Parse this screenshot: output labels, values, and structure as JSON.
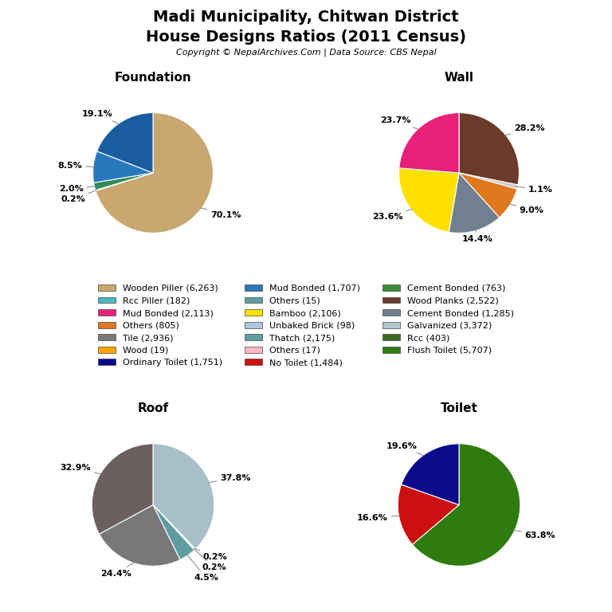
{
  "title": "Madi Municipality, Chitwan District",
  "subtitle": "House Designs Ratios (2011 Census)",
  "annotations": [
    "Copyright © NepalArchives.Com | Data Source: CBS Nepal"
  ],
  "legend": "center",
  "series": [
    {
      "name": "Wooden Piller (6,263)",
      "color": "#C8A870"
    },
    {
      "name": "Rcc Piller (182)",
      "color": "#4BB8C0"
    },
    {
      "name": "Mud Bonded (2,113)",
      "color": "#E8207A"
    },
    {
      "name": "Others (805)",
      "color": "#E07820"
    },
    {
      "name": "Tile (2,936)",
      "color": "#787878"
    },
    {
      "name": "Wood (19)",
      "color": "#FFA500"
    },
    {
      "name": "Ordinary Toilet (1,751)",
      "color": "#0A0A8B"
    },
    {
      "name": "Mud Bonded (1,707)",
      "color": "#2878BE"
    },
    {
      "name": "Others (15)",
      "color": "#5F9EA0"
    },
    {
      "name": "Bamboo (2,106)",
      "color": "#FFE000"
    },
    {
      "name": "Unbaked Brick (98)",
      "color": "#B0C4DE"
    },
    {
      "name": "Thatch (2,175)",
      "color": "#5F9EA0"
    },
    {
      "name": "Others (17)",
      "color": "#FFB6C1"
    },
    {
      "name": "No Toilet (1,484)",
      "color": "#CC1010"
    },
    {
      "name": "Cement Bonded (763)",
      "color": "#3A8B3A"
    },
    {
      "name": "Wood Planks (2,522)",
      "color": "#6B3A2A"
    },
    {
      "name": "Cement Bonded (1,285)",
      "color": "#708090"
    },
    {
      "name": "Galvanized (3,372)",
      "color": "#B0C8D0"
    },
    {
      "name": "Rcc (403)",
      "color": "#3A6B20"
    },
    {
      "name": "Flush Toilet (5,707)",
      "color": "#2E7B10"
    }
  ],
  "chart_data": [
    {
      "type": "pie",
      "title": "Foundation",
      "values": [
        70.1,
        0.2,
        2.0,
        8.5,
        19.1
      ],
      "value_labels": [
        "70.1%",
        "0.2%",
        "2.0%",
        "8.5%",
        "19.1%"
      ],
      "colors": [
        "#C8A870",
        "#4BB8C0",
        "#2E8B57",
        "#2878BE",
        "#1A5CA0"
      ],
      "data_labels": true
    },
    {
      "type": "pie",
      "title": "Wall",
      "values": [
        28.2,
        1.1,
        9.0,
        14.4,
        23.6,
        23.7
      ],
      "value_labels": [
        "28.2%",
        "1.1%",
        "9.0%",
        "14.4%",
        "23.6%",
        "23.7%"
      ],
      "colors": [
        "#6B3A2A",
        "#C8C8C0",
        "#E07820",
        "#708090",
        "#FFE000",
        "#E8207A"
      ],
      "data_labels": true
    },
    {
      "type": "pie",
      "title": "Roof",
      "values": [
        37.8,
        0.2,
        0.2,
        4.5,
        24.4,
        32.9
      ],
      "value_labels": [
        "37.8%",
        "0.2%",
        "0.2%",
        "4.5%",
        "24.4%",
        "32.9%"
      ],
      "colors": [
        "#A8BFC8",
        "#CC6633",
        "#3A6B20",
        "#5F9EA0",
        "#787878",
        "#6B6060"
      ],
      "data_labels": true
    },
    {
      "type": "pie",
      "title": "Toilet",
      "values": [
        63.8,
        16.6,
        19.6
      ],
      "value_labels": [
        "63.8%",
        "16.6%",
        "19.6%"
      ],
      "colors": [
        "#2E7B10",
        "#CC1010",
        "#0A0A8B"
      ],
      "data_labels": true
    }
  ]
}
